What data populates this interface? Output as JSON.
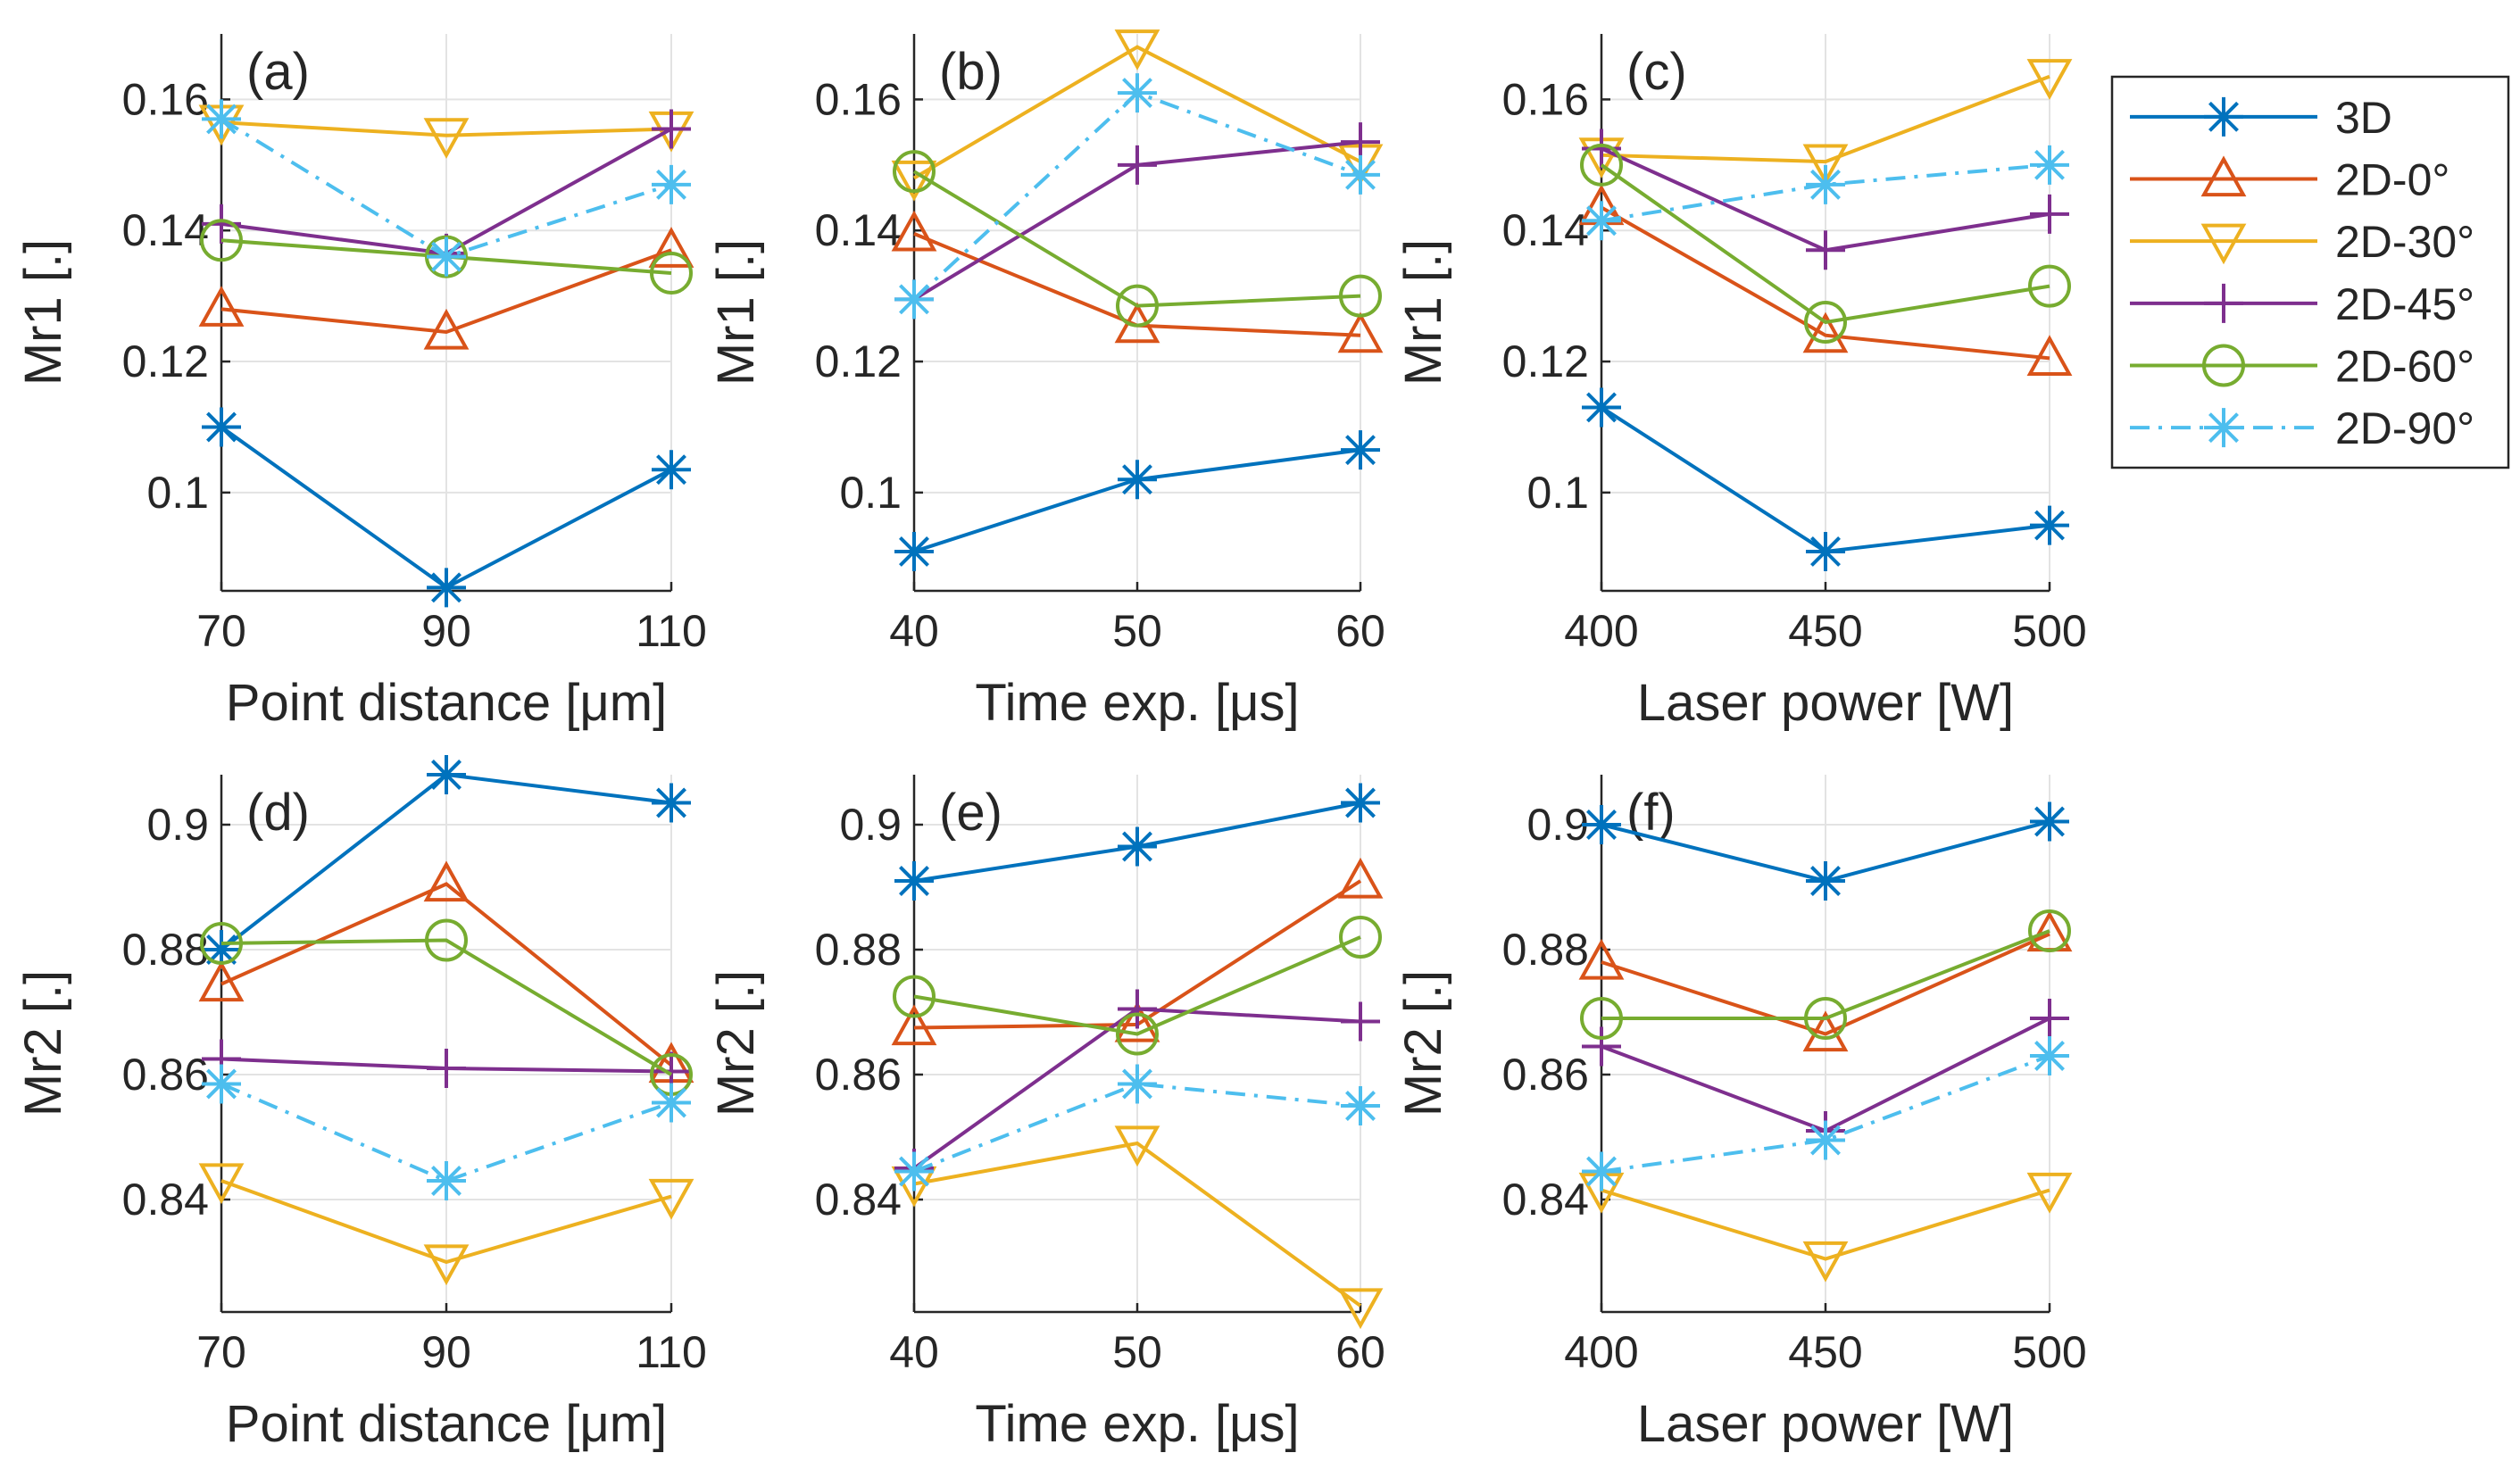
{
  "chart_data": [
    {
      "panel": "a",
      "type": "line",
      "label": "(a)",
      "xlabel": "Point distance [μm]",
      "ylabel": "Mr1 [.]",
      "x": [
        70,
        90,
        110
      ],
      "xticks": [
        "70",
        "90",
        "110"
      ],
      "xlim": [
        70,
        110
      ],
      "ylim": [
        0.085,
        0.17
      ],
      "yticks": [
        0.1,
        0.12,
        0.14,
        0.16
      ],
      "ytick_labels": [
        "0.1",
        "0.12",
        "0.14",
        "0.16"
      ],
      "series": [
        {
          "name": "3D",
          "values": [
            0.11,
            0.0855,
            0.1035
          ]
        },
        {
          "name": "2D-0°",
          "values": [
            0.128,
            0.1245,
            0.137
          ]
        },
        {
          "name": "2D-30°",
          "values": [
            0.1565,
            0.1545,
            0.1555
          ]
        },
        {
          "name": "2D-45°",
          "values": [
            0.141,
            0.1365,
            0.1555
          ]
        },
        {
          "name": "2D-60°",
          "values": [
            0.1385,
            0.136,
            0.1335
          ]
        },
        {
          "name": "2D-90°",
          "values": [
            0.157,
            0.136,
            0.147
          ]
        }
      ]
    },
    {
      "panel": "b",
      "type": "line",
      "label": "(b)",
      "xlabel": "Time exp. [μs]",
      "ylabel": "Mr1 [.]",
      "x": [
        40,
        50,
        60
      ],
      "xticks": [
        "40",
        "50",
        "60"
      ],
      "xlim": [
        40,
        60
      ],
      "ylim": [
        0.085,
        0.17
      ],
      "yticks": [
        0.1,
        0.12,
        0.14,
        0.16
      ],
      "ytick_labels": [
        "0.1",
        "0.12",
        "0.14",
        "0.16"
      ],
      "series": [
        {
          "name": "3D",
          "values": [
            0.091,
            0.102,
            0.1065
          ]
        },
        {
          "name": "2D-0°",
          "values": [
            0.1395,
            0.1255,
            0.124
          ]
        },
        {
          "name": "2D-30°",
          "values": [
            0.148,
            0.168,
            0.1505
          ]
        },
        {
          "name": "2D-45°",
          "values": [
            0.1295,
            0.15,
            0.1535
          ]
        },
        {
          "name": "2D-60°",
          "values": [
            0.149,
            0.1285,
            0.13
          ]
        },
        {
          "name": "2D-90°",
          "values": [
            0.1295,
            0.161,
            0.1485
          ]
        }
      ]
    },
    {
      "panel": "c",
      "type": "line",
      "label": "(c)",
      "xlabel": "Laser power [W]",
      "ylabel": "Mr1 [.]",
      "x": [
        400,
        450,
        500
      ],
      "xticks": [
        "400",
        "450",
        "500"
      ],
      "xlim": [
        400,
        500
      ],
      "ylim": [
        0.085,
        0.17
      ],
      "yticks": [
        0.1,
        0.12,
        0.14,
        0.16
      ],
      "ytick_labels": [
        "0.1",
        "0.12",
        "0.14",
        "0.16"
      ],
      "series": [
        {
          "name": "3D",
          "values": [
            0.113,
            0.091,
            0.095
          ]
        },
        {
          "name": "2D-0°",
          "values": [
            0.1435,
            0.124,
            0.1205
          ]
        },
        {
          "name": "2D-30°",
          "values": [
            0.1515,
            0.1505,
            0.1635
          ]
        },
        {
          "name": "2D-45°",
          "values": [
            0.1525,
            0.137,
            0.1425
          ]
        },
        {
          "name": "2D-60°",
          "values": [
            0.15,
            0.126,
            0.1315
          ]
        },
        {
          "name": "2D-90°",
          "values": [
            0.1415,
            0.147,
            0.15
          ]
        }
      ]
    },
    {
      "panel": "d",
      "type": "line",
      "label": "(d)",
      "xlabel": "Point distance [μm]",
      "ylabel": "Mr2 [.]",
      "x": [
        70,
        90,
        110
      ],
      "xticks": [
        "70",
        "90",
        "110"
      ],
      "xlim": [
        70,
        110
      ],
      "ylim": [
        0.822,
        0.908
      ],
      "yticks": [
        0.84,
        0.86,
        0.88,
        0.9
      ],
      "ytick_labels": [
        "0.84",
        "0.86",
        "0.88",
        "0.9"
      ],
      "series": [
        {
          "name": "3D",
          "values": [
            0.88,
            0.908,
            0.9035
          ]
        },
        {
          "name": "2D-0°",
          "values": [
            0.8745,
            0.8905,
            0.8615
          ]
        },
        {
          "name": "2D-30°",
          "values": [
            0.843,
            0.83,
            0.8405
          ]
        },
        {
          "name": "2D-45°",
          "values": [
            0.8625,
            0.861,
            0.8605
          ]
        },
        {
          "name": "2D-60°",
          "values": [
            0.881,
            0.8815,
            0.86
          ]
        },
        {
          "name": "2D-90°",
          "values": [
            0.8585,
            0.843,
            0.8555
          ]
        }
      ]
    },
    {
      "panel": "e",
      "type": "line",
      "label": "(e)",
      "xlabel": "Time exp. [μs]",
      "ylabel": "Mr2 [.]",
      "x": [
        40,
        50,
        60
      ],
      "xticks": [
        "40",
        "50",
        "60"
      ],
      "xlim": [
        40,
        60
      ],
      "ylim": [
        0.822,
        0.908
      ],
      "yticks": [
        0.84,
        0.86,
        0.88,
        0.9
      ],
      "ytick_labels": [
        "0.84",
        "0.86",
        "0.88",
        "0.9"
      ],
      "series": [
        {
          "name": "3D",
          "values": [
            0.891,
            0.8965,
            0.9035
          ]
        },
        {
          "name": "2D-0°",
          "values": [
            0.8675,
            0.868,
            0.891
          ]
        },
        {
          "name": "2D-30°",
          "values": [
            0.8425,
            0.849,
            0.823
          ]
        },
        {
          "name": "2D-45°",
          "values": [
            0.845,
            0.8705,
            0.8685
          ]
        },
        {
          "name": "2D-60°",
          "values": [
            0.8725,
            0.8665,
            0.882
          ]
        },
        {
          "name": "2D-90°",
          "values": [
            0.8445,
            0.8585,
            0.855
          ]
        }
      ]
    },
    {
      "panel": "f",
      "type": "line",
      "label": "(f)",
      "xlabel": "Laser power [W]",
      "ylabel": "Mr2 [.]",
      "x": [
        400,
        450,
        500
      ],
      "xticks": [
        "400",
        "450",
        "500"
      ],
      "xlim": [
        400,
        500
      ],
      "ylim": [
        0.822,
        0.908
      ],
      "yticks": [
        0.84,
        0.86,
        0.88,
        0.9
      ],
      "ytick_labels": [
        "0.84",
        "0.86",
        "0.88",
        "0.9"
      ],
      "series": [
        {
          "name": "3D",
          "values": [
            0.9,
            0.891,
            0.9005
          ]
        },
        {
          "name": "2D-0°",
          "values": [
            0.878,
            0.8665,
            0.8825
          ]
        },
        {
          "name": "2D-30°",
          "values": [
            0.8415,
            0.8305,
            0.8415
          ]
        },
        {
          "name": "2D-45°",
          "values": [
            0.8645,
            0.851,
            0.869
          ]
        },
        {
          "name": "2D-60°",
          "values": [
            0.869,
            0.869,
            0.883
          ]
        },
        {
          "name": "2D-90°",
          "values": [
            0.8445,
            0.8495,
            0.863
          ]
        }
      ]
    }
  ],
  "legend": {
    "placement": "right",
    "entries": [
      {
        "name": "3D",
        "color": "#0072BD",
        "marker": "asterisk",
        "dash": "solid"
      },
      {
        "name": "2D-0°",
        "color": "#D95319",
        "marker": "triangle-up",
        "dash": "solid"
      },
      {
        "name": "2D-30°",
        "color": "#EDB120",
        "marker": "triangle-down",
        "dash": "solid"
      },
      {
        "name": "2D-45°",
        "color": "#7E2F8E",
        "marker": "plus",
        "dash": "solid"
      },
      {
        "name": "2D-60°",
        "color": "#77AC30",
        "marker": "circle",
        "dash": "solid"
      },
      {
        "name": "2D-90°",
        "color": "#4DBEEE",
        "marker": "asterisk",
        "dash": "dash-dot"
      }
    ]
  }
}
